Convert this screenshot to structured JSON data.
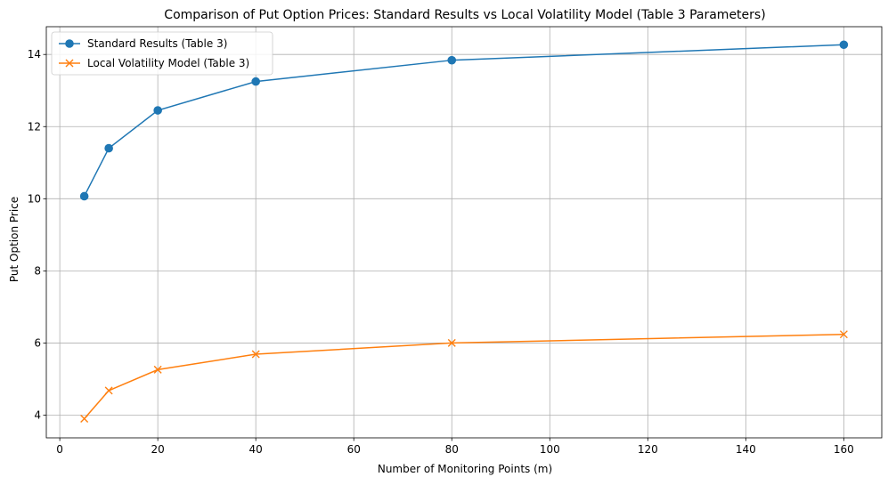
{
  "chart_data": {
    "type": "line",
    "title": "Comparison of Put Option Prices: Standard Results vs Local Volatility Model (Table 3 Parameters)",
    "xlabel": "Number of Monitoring Points (m)",
    "ylabel": "Put Option Price",
    "xlim": [
      -2.75,
      167.75
    ],
    "ylim": [
      3.37,
      14.77
    ],
    "xticks": [
      0,
      20,
      40,
      60,
      80,
      100,
      120,
      140,
      160
    ],
    "yticks": [
      4,
      6,
      8,
      10,
      12,
      14
    ],
    "grid": true,
    "legend_position": "top-left",
    "x": [
      5,
      10,
      20,
      40,
      80,
      160
    ],
    "series": [
      {
        "name": "Standard Results (Table 3)",
        "values": [
          10.07,
          11.4,
          12.45,
          13.25,
          13.84,
          14.27
        ],
        "color": "#1f77b4",
        "marker": "circle"
      },
      {
        "name": "Local Volatility Model (Table 3)",
        "values": [
          3.9,
          4.68,
          5.26,
          5.69,
          6.0,
          6.24
        ],
        "color": "#ff7f0e",
        "marker": "x"
      }
    ]
  }
}
